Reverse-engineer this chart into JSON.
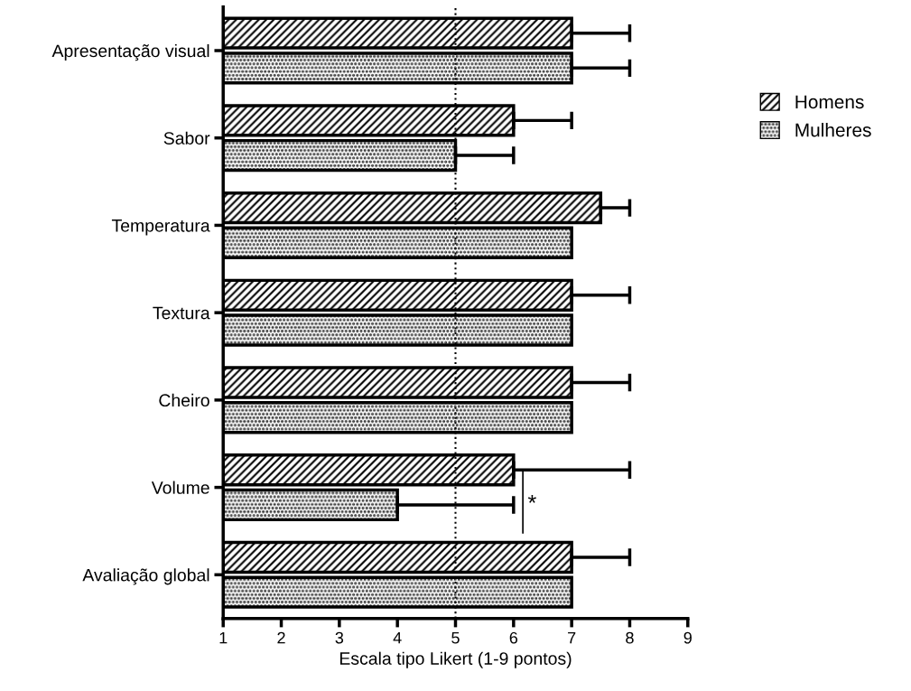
{
  "chart_data": {
    "type": "bar",
    "orientation": "horizontal",
    "xlabel": "Escala tipo Likert (1-9 pontos)",
    "categories": [
      "Apresentação visual",
      "Sabor",
      "Temperatura",
      "Textura",
      "Cheiro",
      "Volume",
      "Avaliação global"
    ],
    "series": [
      {
        "name": "Homens",
        "color": "#000000",
        "values": [
          7,
          6,
          7.5,
          7,
          7,
          6,
          7
        ],
        "errors": [
          [
            7,
            8
          ],
          [
            6,
            7
          ],
          [
            7.5,
            8
          ],
          [
            7,
            8
          ],
          [
            7,
            8
          ],
          [
            6,
            8
          ],
          [
            7,
            8
          ]
        ]
      },
      {
        "name": "Mulheres",
        "color": "#000000",
        "values": [
          7,
          5,
          7,
          7,
          7,
          4,
          7
        ],
        "errors": [
          [
            7,
            8
          ],
          [
            5,
            6
          ],
          null,
          null,
          null,
          [
            4,
            6
          ],
          null
        ]
      }
    ],
    "xlim": [
      1,
      9
    ],
    "xticks": [
      1,
      2,
      3,
      4,
      5,
      6,
      7,
      8,
      9
    ],
    "ref_lines": [
      {
        "axis": "x",
        "value": 5,
        "line_style": "dotted",
        "color": "#000000"
      }
    ],
    "annotations": [
      "*"
    ],
    "legend": "right",
    "grid": false
  }
}
